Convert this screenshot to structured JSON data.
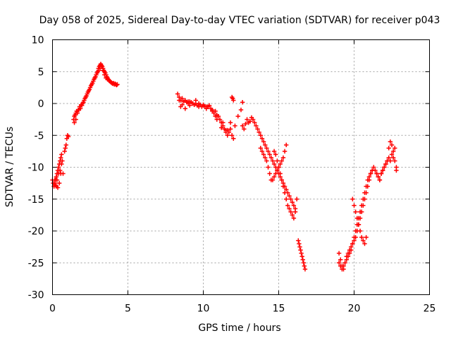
{
  "chart_data": {
    "type": "scatter",
    "title": "Day 058 of 2025, Sidereal Day-to-day VTEC variation (SDTVAR) for receiver p043",
    "xlabel": "GPS time / hours",
    "ylabel": "SDTVAR / TECUs",
    "xlim": [
      0,
      25
    ],
    "ylim": [
      -30,
      10
    ],
    "xticks": [
      0,
      5,
      10,
      15,
      20,
      25
    ],
    "yticks": [
      10,
      5,
      0,
      -5,
      -10,
      -15,
      -20,
      -25,
      -30
    ],
    "grid": true,
    "marker": "plus",
    "color": "#ff0000",
    "series": [
      {
        "x": [
          0.0,
          0.05,
          0.1,
          0.15,
          0.2,
          0.25,
          0.3,
          0.35,
          0.4,
          0.45,
          0.5,
          0.55,
          0.6,
          0.65,
          0.7,
          0.8,
          0.85,
          0.9,
          0.95,
          1.0,
          1.05,
          1.4,
          1.45,
          1.5,
          1.55,
          1.6,
          1.7,
          1.8,
          1.9,
          2.0,
          2.1,
          2.2,
          2.3,
          2.4,
          2.5,
          2.6,
          2.7,
          2.8,
          2.9,
          3.0,
          3.05,
          3.1,
          3.15,
          3.2,
          3.25,
          3.3,
          3.35,
          3.4,
          3.45,
          3.5,
          3.55,
          3.6,
          3.65,
          3.7,
          3.75,
          3.8,
          3.85,
          3.9,
          3.95,
          4.0,
          4.05,
          4.1,
          4.15,
          4.2,
          4.25,
          4.3,
          0.1,
          0.2,
          0.3,
          0.4,
          0.5,
          0.6,
          0.55,
          0.45,
          0.35,
          0.25,
          0.15,
          1.45,
          1.55,
          1.65,
          1.75,
          1.85,
          1.95,
          2.05,
          2.15,
          2.25,
          2.35,
          2.45,
          2.55,
          2.65,
          2.75,
          2.85,
          2.95,
          3.05,
          3.15,
          3.25,
          3.35,
          3.45,
          3.55,
          3.65,
          3.75
        ],
        "y": [
          -12.0,
          -12.5,
          -13.0,
          -12.5,
          -12.0,
          -11.5,
          -11.0,
          -10.5,
          -10.0,
          -9.5,
          -9.0,
          -8.5,
          -8.0,
          -9.0,
          -11.0,
          -7.5,
          -7.0,
          -6.5,
          -5.5,
          -5.0,
          -5.2,
          -2.5,
          -2.0,
          -1.8,
          -1.5,
          -1.2,
          -1.0,
          -0.5,
          -0.2,
          0.0,
          0.5,
          1.0,
          1.5,
          2.0,
          2.5,
          3.0,
          3.5,
          4.0,
          4.5,
          5.0,
          5.5,
          5.8,
          6.0,
          6.2,
          6.0,
          5.8,
          5.5,
          5.2,
          5.0,
          4.8,
          4.5,
          4.2,
          4.0,
          3.8,
          3.6,
          3.5,
          3.4,
          3.3,
          3.2,
          3.1,
          3.2,
          3.0,
          3.1,
          3.0,
          2.9,
          3.0,
          -13.0,
          -12.8,
          -12.0,
          -11.0,
          -10.5,
          -9.5,
          -11.0,
          -12.5,
          -13.2,
          -13.0,
          -12.0,
          -3.0,
          -2.5,
          -1.5,
          -1.0,
          -0.8,
          -0.3,
          0.2,
          0.8,
          1.2,
          1.8,
          2.2,
          2.8,
          3.2,
          3.8,
          4.2,
          4.8,
          5.2,
          5.5,
          5.8,
          5.2,
          4.5,
          4.0,
          3.8,
          3.6
        ]
      },
      {
        "x": [
          8.3,
          8.4,
          8.5,
          8.6,
          8.7,
          8.8,
          8.9,
          9.0,
          9.1,
          9.2,
          9.3,
          9.4,
          9.5,
          9.6,
          9.7,
          9.8,
          9.9,
          10.0,
          10.1,
          10.2,
          10.3,
          10.4,
          10.5,
          10.6,
          10.7,
          10.8,
          10.9,
          11.0,
          11.1,
          11.2,
          11.3,
          11.4,
          11.5,
          11.6,
          11.7,
          11.8,
          11.9,
          12.0,
          11.9,
          11.95,
          12.0,
          12.1,
          12.3,
          12.5,
          12.6,
          8.5,
          8.8,
          9.1,
          9.4,
          9.7,
          10.0,
          10.3,
          10.6,
          10.9,
          11.2,
          11.5,
          11.8,
          8.4,
          8.6,
          9.0,
          9.5,
          10.2,
          10.8,
          11.3,
          11.6
        ],
        "y": [
          1.5,
          1.0,
          0.5,
          0.8,
          0.3,
          0.5,
          0.2,
          0.0,
          0.3,
          0.2,
          0.0,
          -0.2,
          0.0,
          -0.3,
          0.0,
          -0.2,
          -0.5,
          -0.3,
          -0.5,
          -0.8,
          -0.5,
          -0.3,
          -0.8,
          -1.0,
          -1.5,
          -1.2,
          -1.8,
          -2.0,
          -2.5,
          -3.0,
          -3.5,
          -4.0,
          -4.5,
          -5.0,
          -4.5,
          -4.0,
          -5.0,
          -5.5,
          1.0,
          0.8,
          0.5,
          -3.5,
          -2.0,
          -1.0,
          0.2,
          -0.5,
          -0.8,
          -0.3,
          -0.2,
          -0.5,
          -0.2,
          -0.5,
          -1.2,
          -2.5,
          -3.8,
          -4.2,
          -3.0,
          0.5,
          -0.2,
          0.3,
          0.5,
          -0.5,
          -2.0,
          -3.0,
          -4.2
        ]
      },
      {
        "x": [
          12.6,
          12.7,
          12.8,
          12.9,
          13.0,
          13.1,
          13.2,
          13.3,
          13.4,
          13.5,
          13.6,
          13.7,
          13.8,
          13.9,
          14.0,
          14.1,
          14.2,
          14.3,
          14.4,
          14.5,
          14.6,
          14.7,
          14.8,
          14.9,
          15.0,
          15.1,
          15.2,
          15.3,
          15.4,
          15.5,
          15.6,
          15.7,
          15.8,
          15.9,
          16.0,
          16.1,
          13.8,
          13.9,
          14.0,
          14.1,
          14.2,
          14.3,
          14.4,
          14.5,
          14.6,
          14.7,
          14.8,
          14.9,
          15.0,
          15.1,
          15.2,
          15.3,
          15.4,
          15.5,
          14.7,
          14.8,
          14.9,
          15.0,
          15.1,
          15.2,
          15.3,
          15.4,
          15.5,
          15.6,
          15.7,
          15.8,
          15.9,
          16.0,
          16.1,
          16.2
        ],
        "y": [
          -3.5,
          -4.0,
          -3.2,
          -2.5,
          -3.0,
          -2.8,
          -2.2,
          -2.5,
          -3.0,
          -3.5,
          -4.0,
          -4.5,
          -5.0,
          -5.5,
          -6.0,
          -6.5,
          -7.0,
          -7.5,
          -8.0,
          -8.5,
          -9.0,
          -9.5,
          -10.0,
          -10.5,
          -11.0,
          -11.5,
          -12.0,
          -12.5,
          -13.0,
          -13.5,
          -14.0,
          -14.5,
          -15.0,
          -15.5,
          -16.0,
          -17.0,
          -7.0,
          -7.5,
          -8.0,
          -8.5,
          -9.0,
          -10.0,
          -11.0,
          -12.0,
          -12.0,
          -11.5,
          -11.0,
          -10.5,
          -10.0,
          -9.5,
          -9.0,
          -8.5,
          -7.5,
          -6.5,
          -7.5,
          -8.0,
          -9.0,
          -10.0,
          -11.0,
          -12.0,
          -13.0,
          -14.0,
          -15.0,
          -16.0,
          -16.5,
          -17.0,
          -17.5,
          -18.0,
          -16.5,
          -15.0
        ]
      },
      {
        "x": [
          16.3,
          16.35,
          16.4,
          16.45,
          16.5,
          16.55,
          16.6,
          16.65,
          16.7,
          16.75
        ],
        "y": [
          -21.5,
          -22.0,
          -22.5,
          -23.0,
          -23.5,
          -24.0,
          -24.5,
          -25.0,
          -25.5,
          -26.0
        ]
      },
      {
        "x": [
          19.0,
          19.1,
          19.2,
          19.3,
          19.4,
          19.5,
          19.6,
          19.7,
          19.8,
          19.9,
          20.0,
          20.1,
          20.2,
          20.3,
          20.4,
          20.5,
          20.6,
          20.7,
          20.8,
          20.9,
          21.0,
          21.1,
          21.2,
          21.3,
          21.4,
          21.5,
          21.6,
          21.7,
          21.8,
          21.9,
          22.0,
          22.1,
          22.2,
          22.3,
          22.4,
          22.5,
          22.6,
          22.7,
          22.8,
          19.0,
          19.1,
          19.2,
          19.3,
          19.4,
          19.5,
          19.6,
          19.7,
          19.8,
          19.9,
          20.0,
          20.1,
          20.2,
          20.3,
          20.4,
          20.5,
          20.6,
          20.7,
          20.8,
          20.9,
          21.0,
          21.1,
          21.2,
          19.9,
          20.0,
          20.1,
          20.2,
          20.3,
          20.4,
          20.5,
          20.6,
          20.7,
          20.8,
          21.5,
          21.6,
          21.7,
          21.8,
          21.9,
          22.0,
          22.1,
          22.2,
          22.3,
          22.4,
          22.5,
          22.6,
          22.7,
          22.8
        ],
        "y": [
          -23.5,
          -24.5,
          -25.5,
          -26.0,
          -25.0,
          -24.0,
          -23.5,
          -23.0,
          -22.5,
          -22.0,
          -21.5,
          -21.0,
          -20.0,
          -19.0,
          -18.0,
          -17.0,
          -16.0,
          -15.0,
          -14.0,
          -13.0,
          -12.0,
          -11.0,
          -10.5,
          -10.0,
          -10.5,
          -11.0,
          -11.5,
          -12.0,
          -11.0,
          -10.5,
          -10.0,
          -9.5,
          -9.0,
          -8.5,
          -9.0,
          -8.0,
          -7.5,
          -7.0,
          -10.0,
          -25.0,
          -25.5,
          -26.0,
          -25.5,
          -25.0,
          -24.5,
          -24.0,
          -23.5,
          -23.0,
          -22.0,
          -21.0,
          -20.0,
          -19.0,
          -18.0,
          -17.0,
          -16.0,
          -15.0,
          -14.0,
          -13.0,
          -12.0,
          -11.5,
          -11.0,
          -10.5,
          -15.0,
          -16.0,
          -17.0,
          -18.0,
          -19.0,
          -20.0,
          -21.0,
          -21.5,
          -22.0,
          -21.0,
          -11.0,
          -11.5,
          -12.0,
          -11.0,
          -10.5,
          -10.0,
          -9.5,
          -9.0,
          -7.0,
          -6.0,
          -6.5,
          -8.5,
          -9.0,
          -10.5
        ]
      }
    ]
  }
}
